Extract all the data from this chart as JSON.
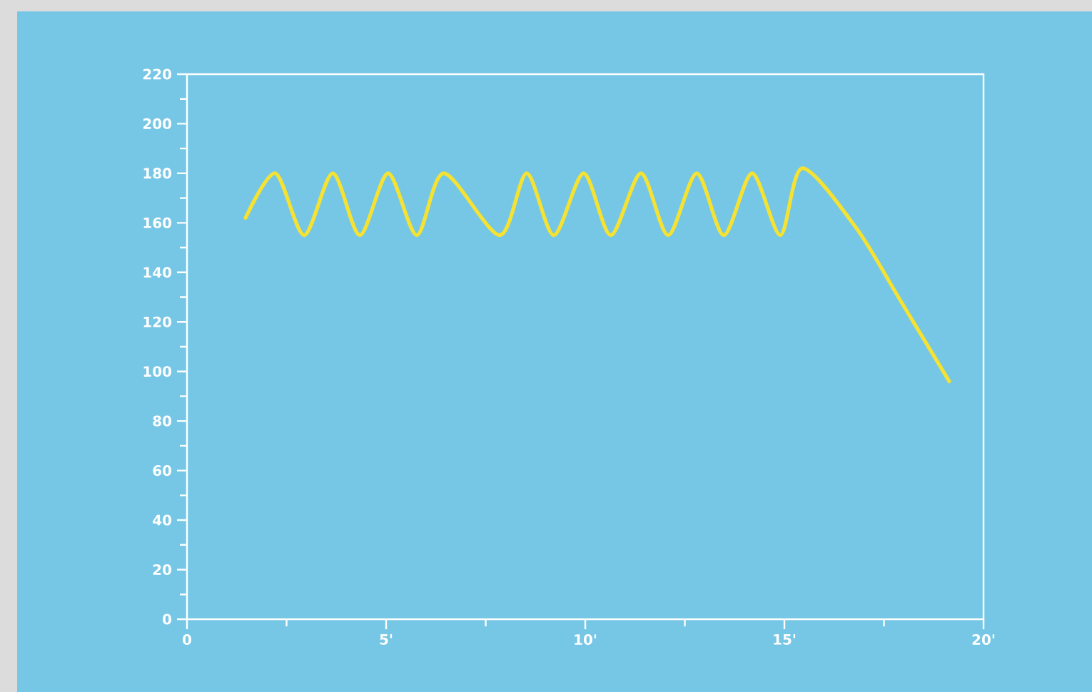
{
  "chart_data": {
    "type": "line",
    "x": [
      1.47,
      2.22,
      2.94,
      3.66,
      4.34,
      5.05,
      5.77,
      6.45,
      7.85,
      8.53,
      9.21,
      9.96,
      10.64,
      11.4,
      12.08,
      12.8,
      13.48,
      14.19,
      14.9,
      15.45,
      16.8,
      17.9,
      19.14
    ],
    "series": [
      {
        "color": "#f5e232",
        "values": [
          162,
          180,
          155,
          180,
          155,
          180,
          155,
          180,
          155,
          180,
          155,
          180,
          155,
          180,
          155,
          180,
          155,
          180,
          155,
          182,
          158,
          129,
          96
        ]
      }
    ],
    "xlim": [
      0,
      20
    ],
    "ylim": [
      0,
      220
    ],
    "xticks": [
      0,
      {
        "value": 5,
        "label": "5'"
      },
      {
        "value": 10,
        "label": "10'"
      },
      {
        "value": 15,
        "label": "15'"
      },
      {
        "value": 20,
        "label": "20'"
      }
    ],
    "yticks": [
      0,
      20,
      40,
      60,
      80,
      100,
      120,
      140,
      160,
      180,
      200,
      220
    ],
    "grid": false,
    "marker": "none",
    "line_style": "solid"
  }
}
